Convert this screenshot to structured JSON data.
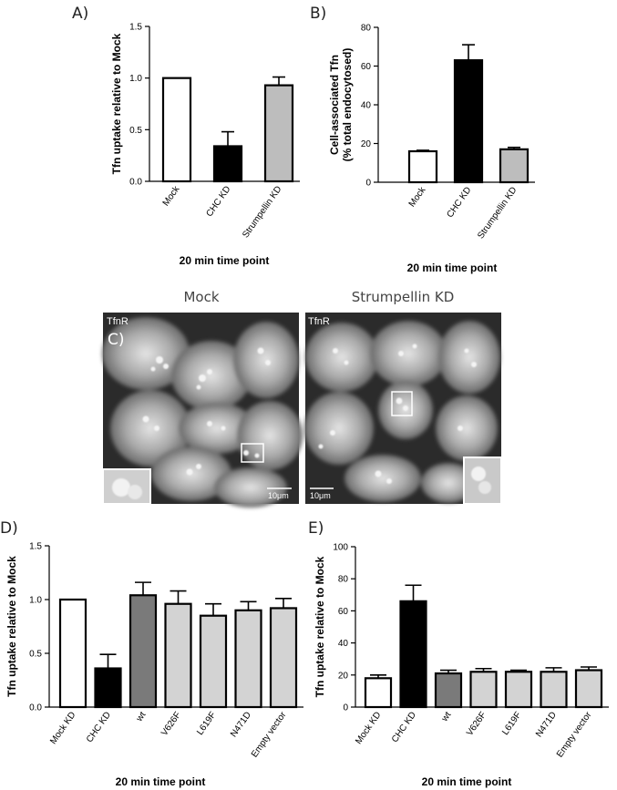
{
  "chart_data": [
    {
      "panel": "A)",
      "type": "bar",
      "categories": [
        "Mock",
        "CHC KD",
        "Strumpellin KD"
      ],
      "values": [
        1.0,
        0.34,
        0.93
      ],
      "errors": [
        0.0,
        0.14,
        0.08
      ],
      "colors": [
        "#ffffff",
        "#000000",
        "#bdbdbd"
      ],
      "ylabel": "Tfn uptake relative to Mock",
      "xlabel": "20 min time point",
      "ylim": [
        0,
        1.5
      ],
      "yticks": [
        "0.0",
        "0.5",
        "1.0",
        "1.5"
      ]
    },
    {
      "panel": "B)",
      "type": "bar",
      "categories": [
        "Mock",
        "CHC KD",
        "Strumpellin KD"
      ],
      "values": [
        16,
        63,
        17
      ],
      "errors": [
        0.5,
        8,
        1
      ],
      "colors": [
        "#ffffff",
        "#000000",
        "#bdbdbd"
      ],
      "ylabel": "Cell-associated Tfn",
      "ylabel2": "(% total endocytosed)",
      "xlabel": "20 min time point",
      "ylim": [
        0,
        80
      ],
      "yticks": [
        "0",
        "20",
        "40",
        "60",
        "80"
      ]
    },
    {
      "panel": "D)",
      "type": "bar",
      "categories": [
        "Mock KD",
        "CHC KD",
        "wt",
        "V626F",
        "L619F",
        "N471D",
        "Empty vector"
      ],
      "values": [
        1.0,
        0.36,
        1.04,
        0.96,
        0.85,
        0.9,
        0.92
      ],
      "errors": [
        0.0,
        0.13,
        0.12,
        0.12,
        0.11,
        0.08,
        0.09
      ],
      "colors": [
        "#ffffff",
        "#000000",
        "#7a7a7a",
        "#d3d3d3",
        "#d3d3d3",
        "#d3d3d3",
        "#d3d3d3"
      ],
      "ylabel": "Tfn uptake relative to Mock",
      "xlabel": "20 min time point",
      "ylim": [
        0,
        1.5
      ],
      "yticks": [
        "0.0",
        "0.5",
        "1.0",
        "1.5"
      ]
    },
    {
      "panel": "E)",
      "type": "bar",
      "categories": [
        "Mock KD",
        "CHC KD",
        "wt",
        "V626F",
        "L619F",
        "N471D",
        "Empty vector"
      ],
      "values": [
        18,
        66,
        21,
        22,
        22,
        22,
        23
      ],
      "errors": [
        2,
        10,
        2,
        2,
        1,
        2.5,
        2
      ],
      "colors": [
        "#ffffff",
        "#000000",
        "#7a7a7a",
        "#d3d3d3",
        "#d3d3d3",
        "#d3d3d3",
        "#d3d3d3"
      ],
      "ylabel": "Tfn uptake relative to Mock",
      "xlabel": "20 min time point",
      "ylim": [
        0,
        100
      ],
      "yticks": [
        "0",
        "20",
        "40",
        "60",
        "80",
        "100"
      ]
    }
  ],
  "panel_c": {
    "panel": "C)",
    "left_title": "Mock",
    "right_title": "Strumpellin KD",
    "channel_label": "TfnR",
    "scale_bar": "10μm"
  }
}
